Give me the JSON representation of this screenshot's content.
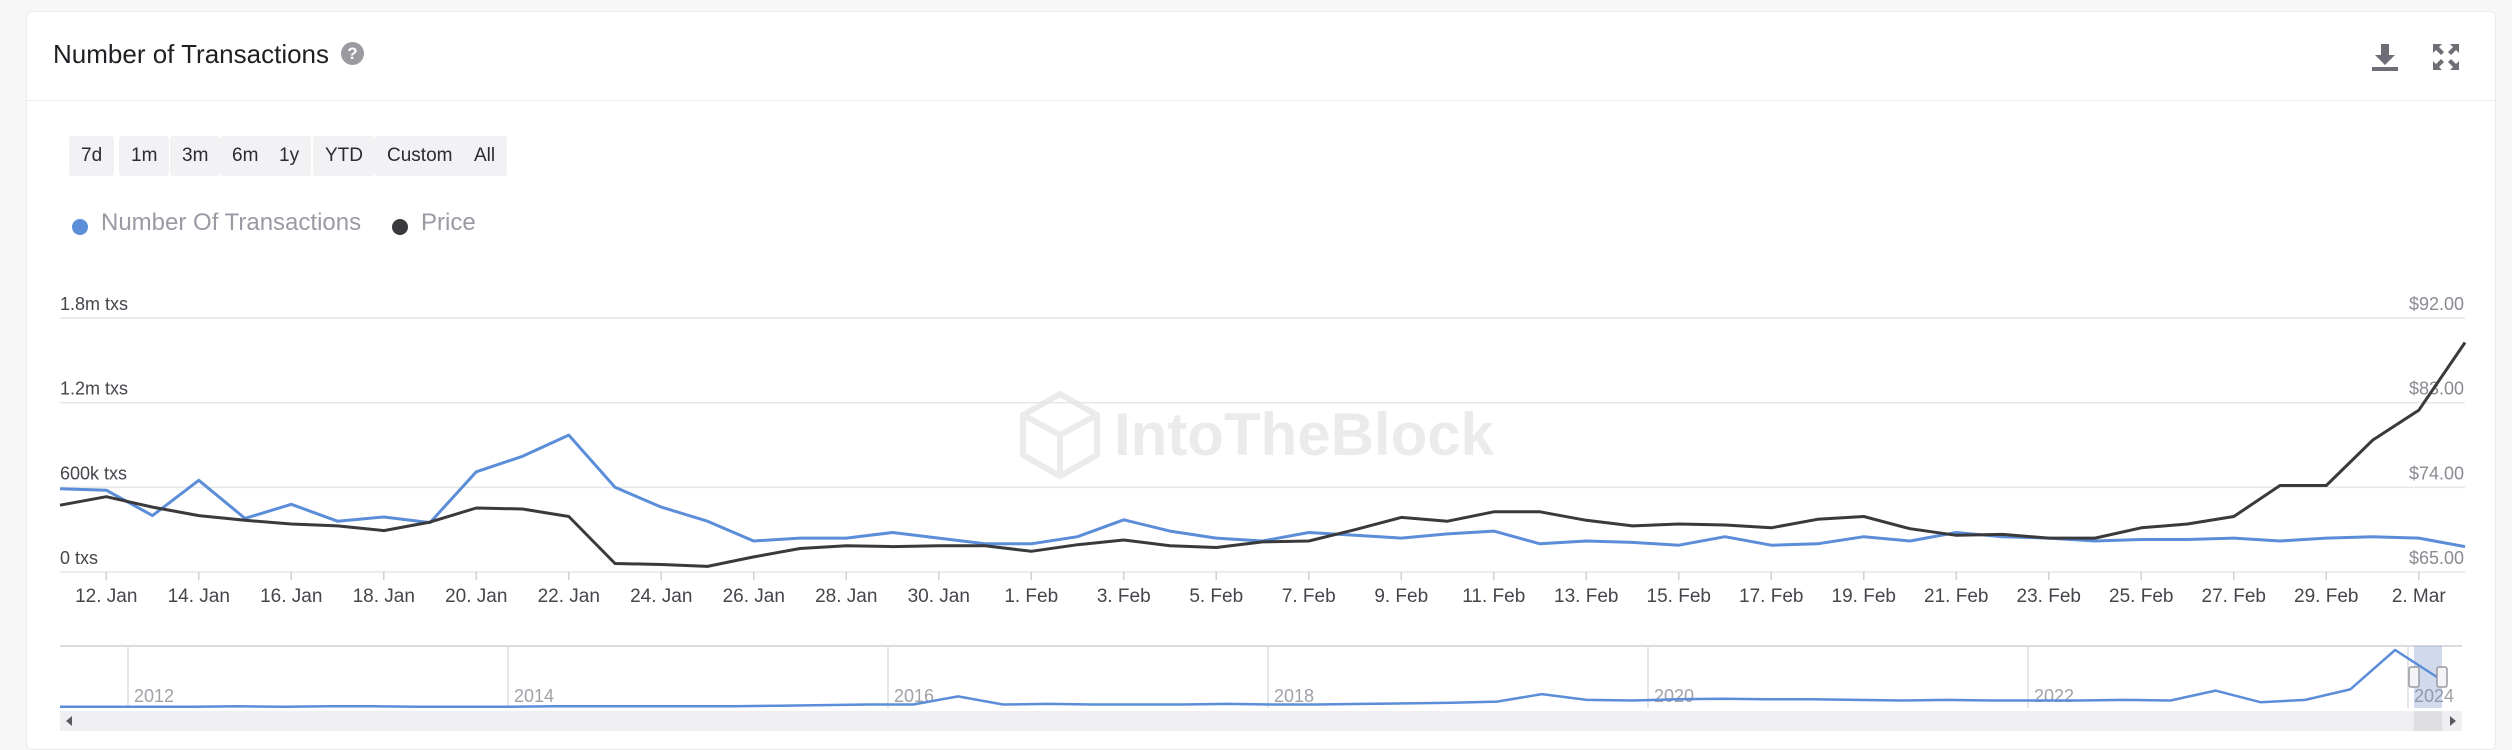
{
  "header": {
    "title": "Number of Transactions",
    "help_icon": "question-circle-icon",
    "download_icon": "download-icon",
    "fullscreen_icon": "expand-icon"
  },
  "range_buttons": [
    "7d",
    "1m",
    "3m",
    "6m",
    "1y",
    "YTD",
    "Custom",
    "All"
  ],
  "watermark": "IntoTheBlock",
  "colors": {
    "transactions": "#5b8dd9",
    "price": "#3a3a3d",
    "grid": "#e6e6ea",
    "navigator_mask": "rgba(102,133,194,0.3)"
  },
  "chart_data": {
    "type": "line",
    "legend": {
      "position": "top-left",
      "items": [
        "Number Of Transactions",
        "Price"
      ]
    },
    "x_tick_labels": [
      "12. Jan",
      "14. Jan",
      "16. Jan",
      "18. Jan",
      "20. Jan",
      "22. Jan",
      "24. Jan",
      "26. Jan",
      "28. Jan",
      "30. Jan",
      "1. Feb",
      "3. Feb",
      "5. Feb",
      "7. Feb",
      "9. Feb",
      "11. Feb",
      "13. Feb",
      "15. Feb",
      "17. Feb",
      "19. Feb",
      "21. Feb",
      "23. Feb",
      "25. Feb",
      "27. Feb",
      "29. Feb",
      "2. Mar"
    ],
    "y_left": {
      "ticks": [
        "0 txs",
        "600k txs",
        "1.2m txs",
        "1.8m txs"
      ],
      "range": [
        0,
        1800000
      ]
    },
    "y_right": {
      "ticks": [
        "$65.00",
        "$74.00",
        "$83.00",
        "$92.00"
      ],
      "range": [
        65,
        92
      ]
    },
    "grid": true,
    "x": [
      "2024-01-11",
      "2024-01-12",
      "2024-01-13",
      "2024-01-14",
      "2024-01-15",
      "2024-01-16",
      "2024-01-17",
      "2024-01-18",
      "2024-01-19",
      "2024-01-20",
      "2024-01-21",
      "2024-01-22",
      "2024-01-23",
      "2024-01-24",
      "2024-01-25",
      "2024-01-26",
      "2024-01-27",
      "2024-01-28",
      "2024-01-29",
      "2024-01-30",
      "2024-01-31",
      "2024-02-01",
      "2024-02-02",
      "2024-02-03",
      "2024-02-04",
      "2024-02-05",
      "2024-02-06",
      "2024-02-07",
      "2024-02-08",
      "2024-02-09",
      "2024-02-10",
      "2024-02-11",
      "2024-02-12",
      "2024-02-13",
      "2024-02-14",
      "2024-02-15",
      "2024-02-16",
      "2024-02-17",
      "2024-02-18",
      "2024-02-19",
      "2024-02-20",
      "2024-02-21",
      "2024-02-22",
      "2024-02-23",
      "2024-02-24",
      "2024-02-25",
      "2024-02-26",
      "2024-02-27",
      "2024-02-28",
      "2024-02-29",
      "2024-03-01",
      "2024-03-02",
      "2024-03-03"
    ],
    "series": [
      {
        "name": "Number Of Transactions",
        "axis": "left",
        "values": [
          590000,
          580000,
          400000,
          650000,
          380000,
          480000,
          360000,
          390000,
          350000,
          710000,
          820000,
          970000,
          600000,
          460000,
          360000,
          220000,
          240000,
          240000,
          280000,
          240000,
          200000,
          200000,
          250000,
          370000,
          290000,
          240000,
          220000,
          280000,
          260000,
          240000,
          270000,
          290000,
          200000,
          220000,
          210000,
          190000,
          250000,
          190000,
          200000,
          250000,
          220000,
          280000,
          250000,
          240000,
          220000,
          230000,
          230000,
          240000,
          220000,
          240000,
          250000,
          240000,
          180000
        ]
      },
      {
        "name": "Price",
        "axis": "left_proxy_right",
        "values": [
          72.1,
          73.0,
          71.9,
          71.0,
          70.5,
          70.1,
          69.9,
          69.4,
          70.3,
          71.8,
          71.7,
          70.9,
          65.9,
          65.8,
          65.6,
          66.6,
          67.5,
          67.8,
          67.7,
          67.8,
          67.8,
          67.2,
          67.9,
          68.4,
          67.8,
          67.6,
          68.2,
          68.3,
          69.5,
          70.8,
          70.4,
          71.4,
          71.4,
          70.5,
          69.9,
          70.1,
          70.0,
          69.7,
          70.6,
          70.9,
          69.6,
          68.9,
          69.0,
          68.6,
          68.6,
          69.7,
          70.1,
          70.9,
          74.2,
          74.2,
          79.0,
          82.2,
          89.4
        ]
      }
    ]
  },
  "navigator": {
    "year_labels": [
      "2012",
      "2014",
      "2016",
      "2018",
      "2020",
      "2022",
      "2024"
    ],
    "values": [
      0.02,
      0.02,
      0.02,
      0.02,
      0.03,
      0.02,
      0.03,
      0.03,
      0.02,
      0.02,
      0.02,
      0.03,
      0.03,
      0.03,
      0.03,
      0.03,
      0.04,
      0.05,
      0.06,
      0.06,
      0.2,
      0.06,
      0.07,
      0.06,
      0.06,
      0.06,
      0.07,
      0.06,
      0.06,
      0.07,
      0.08,
      0.09,
      0.11,
      0.24,
      0.14,
      0.13,
      0.15,
      0.16,
      0.15,
      0.15,
      0.14,
      0.13,
      0.14,
      0.13,
      0.13,
      0.13,
      0.14,
      0.13,
      0.3,
      0.1,
      0.14,
      0.32,
      1.0,
      0.5
    ]
  }
}
